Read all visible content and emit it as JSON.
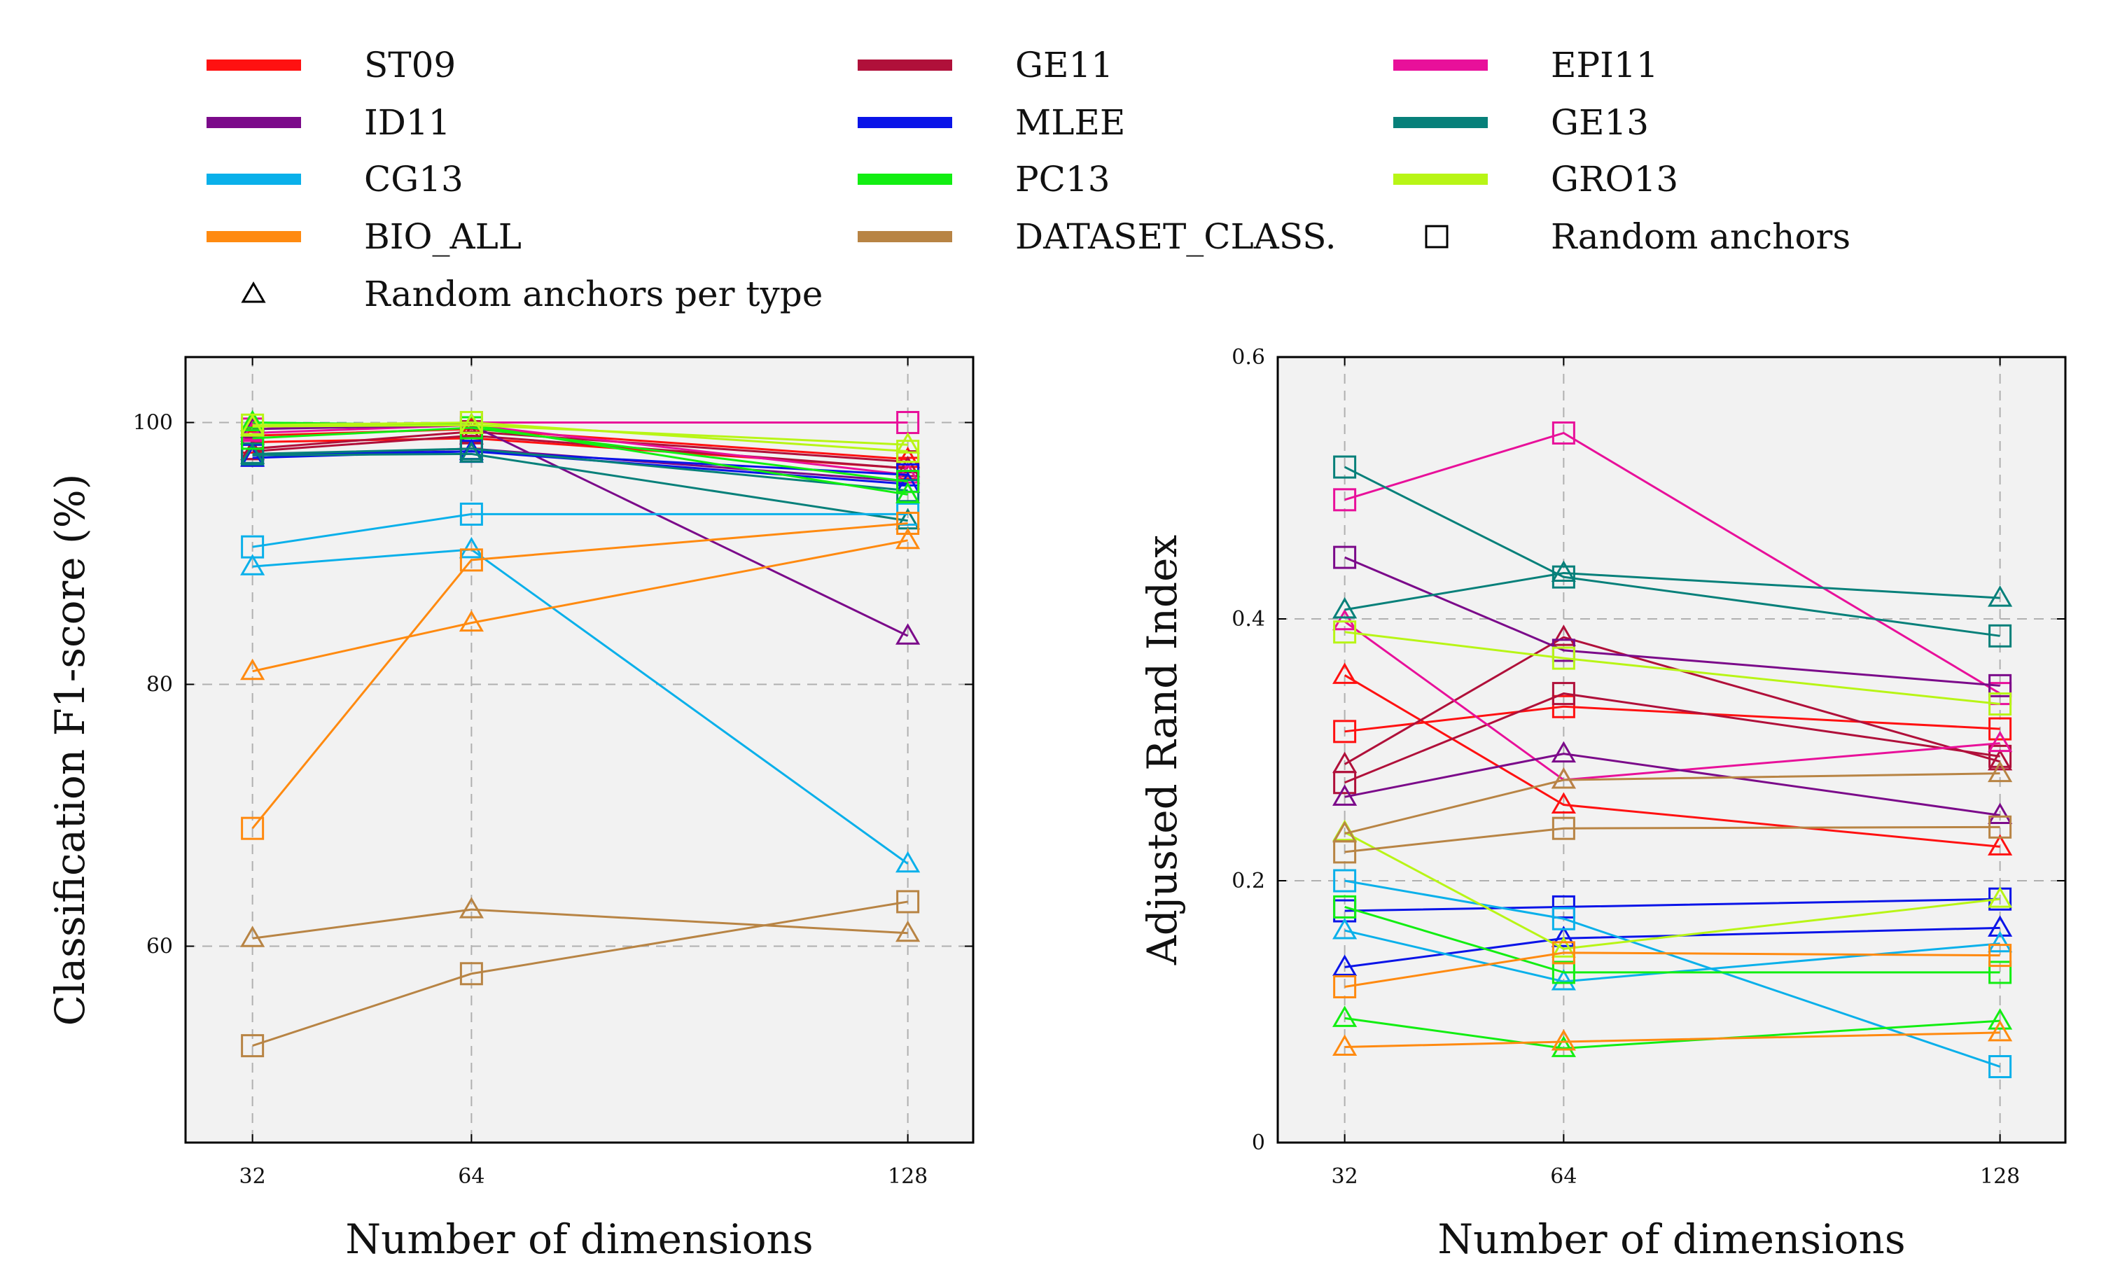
{
  "legend": {
    "entries": [
      {
        "label": "ST09",
        "color": "#ff1111",
        "kind": "line"
      },
      {
        "label": "GE11",
        "color": "#b0103a",
        "kind": "line"
      },
      {
        "label": "EPI11",
        "color": "#e8109a",
        "kind": "line"
      },
      {
        "label": "ID11",
        "color": "#7b0a8a",
        "kind": "line"
      },
      {
        "label": "MLEE",
        "color": "#0a14e8",
        "kind": "line"
      },
      {
        "label": "GE13",
        "color": "#07807a",
        "kind": "line"
      },
      {
        "label": "CG13",
        "color": "#0ab0ea",
        "kind": "line"
      },
      {
        "label": "PC13",
        "color": "#12ee12",
        "kind": "line"
      },
      {
        "label": "GRO13",
        "color": "#b8f516",
        "kind": "line"
      },
      {
        "label": "BIO_ALL",
        "color": "#ff8a10",
        "kind": "line"
      },
      {
        "label": "DATASET_CLASS.",
        "color": "#b88444",
        "kind": "line"
      },
      {
        "label": "Random anchors",
        "color": "#000000",
        "kind": "square"
      },
      {
        "label": "Random anchors per type",
        "color": "#000000",
        "kind": "triangle"
      }
    ]
  },
  "chart_data": [
    {
      "type": "line",
      "xlabel": "Number of dimensions",
      "ylabel": "Classification F1-score (%)",
      "categories": [
        "32",
        "64",
        "128"
      ],
      "ylim": [
        45,
        105
      ],
      "yticks": [
        60,
        80,
        100
      ],
      "grid": true,
      "series": [
        {
          "name": "ST09",
          "color": "#ff1111",
          "marker": "square",
          "values": [
            98.5,
            98.8,
            96.5
          ]
        },
        {
          "name": "ST09",
          "color": "#ff1111",
          "marker": "triangle",
          "values": [
            99.0,
            99.5,
            97.2
          ]
        },
        {
          "name": "GE11",
          "color": "#b0103a",
          "marker": "square",
          "values": [
            98.0,
            99.3,
            97.0
          ]
        },
        {
          "name": "GE11",
          "color": "#b0103a",
          "marker": "triangle",
          "values": [
            97.8,
            99.0,
            96.5
          ]
        },
        {
          "name": "EPI11",
          "color": "#e8109a",
          "marker": "square",
          "values": [
            99.5,
            100.0,
            100.0
          ]
        },
        {
          "name": "EPI11",
          "color": "#e8109a",
          "marker": "triangle",
          "values": [
            99.2,
            99.8,
            96.0
          ]
        },
        {
          "name": "ID11",
          "color": "#7b0a8a",
          "marker": "square",
          "values": [
            97.5,
            98.0,
            95.5
          ]
        },
        {
          "name": "ID11",
          "color": "#7b0a8a",
          "marker": "triangle",
          "values": [
            99.5,
            99.8,
            83.7
          ]
        },
        {
          "name": "MLEE",
          "color": "#0a14e8",
          "marker": "square",
          "values": [
            97.5,
            97.8,
            96.0
          ]
        },
        {
          "name": "MLEE",
          "color": "#0a14e8",
          "marker": "triangle",
          "values": [
            97.3,
            97.8,
            95.3
          ]
        },
        {
          "name": "GE13",
          "color": "#07807a",
          "marker": "square",
          "values": [
            97.6,
            98.0,
            94.8
          ]
        },
        {
          "name": "GE13",
          "color": "#07807a",
          "marker": "triangle",
          "values": [
            97.5,
            97.6,
            92.5
          ]
        },
        {
          "name": "CG13",
          "color": "#0ab0ea",
          "marker": "square",
          "values": [
            90.5,
            93.0,
            93.0
          ]
        },
        {
          "name": "CG13",
          "color": "#0ab0ea",
          "marker": "triangle",
          "values": [
            89.0,
            90.3,
            66.3
          ]
        },
        {
          "name": "PC13",
          "color": "#12ee12",
          "marker": "square",
          "values": [
            98.8,
            99.6,
            95.5
          ]
        },
        {
          "name": "PC13",
          "color": "#12ee12",
          "marker": "triangle",
          "values": [
            100.0,
            99.8,
            94.5
          ]
        },
        {
          "name": "GRO13",
          "color": "#b8f516",
          "marker": "square",
          "values": [
            99.8,
            100.0,
            97.8
          ]
        },
        {
          "name": "GRO13",
          "color": "#b8f516",
          "marker": "triangle",
          "values": [
            99.7,
            99.8,
            98.3
          ]
        },
        {
          "name": "BIO_ALL",
          "color": "#ff8a10",
          "marker": "square",
          "values": [
            69.0,
            89.5,
            92.3
          ]
        },
        {
          "name": "BIO_ALL",
          "color": "#ff8a10",
          "marker": "triangle",
          "values": [
            81.0,
            84.7,
            91.0
          ]
        },
        {
          "name": "DATASET_CLASS.",
          "color": "#b88444",
          "marker": "square",
          "values": [
            52.4,
            57.9,
            63.4
          ]
        },
        {
          "name": "DATASET_CLASS.",
          "color": "#b88444",
          "marker": "triangle",
          "values": [
            60.6,
            62.8,
            61.0
          ]
        }
      ]
    },
    {
      "type": "line",
      "xlabel": "Number of dimensions",
      "ylabel": "Adjusted Rand Index",
      "categories": [
        "32",
        "64",
        "128"
      ],
      "ylim": [
        0,
        0.6
      ],
      "yticks": [
        0,
        0.2,
        0.4,
        0.6
      ],
      "yticklabels": [
        "0",
        "0.2",
        "0.4",
        "0.6"
      ],
      "grid": true,
      "series": [
        {
          "name": "ST09",
          "color": "#ff1111",
          "marker": "square",
          "values": [
            0.314,
            0.333,
            0.316
          ]
        },
        {
          "name": "ST09",
          "color": "#ff1111",
          "marker": "triangle",
          "values": [
            0.357,
            0.258,
            0.226
          ]
        },
        {
          "name": "GE11",
          "color": "#b0103a",
          "marker": "square",
          "values": [
            0.275,
            0.343,
            0.295
          ]
        },
        {
          "name": "GE11",
          "color": "#b0103a",
          "marker": "triangle",
          "values": [
            0.289,
            0.386,
            0.291
          ]
        },
        {
          "name": "EPI11",
          "color": "#e8109a",
          "marker": "square",
          "values": [
            0.491,
            0.542,
            0.343
          ]
        },
        {
          "name": "EPI11",
          "color": "#e8109a",
          "marker": "triangle",
          "values": [
            0.398,
            0.277,
            0.305
          ]
        },
        {
          "name": "ID11",
          "color": "#7b0a8a",
          "marker": "square",
          "values": [
            0.447,
            0.376,
            0.349
          ]
        },
        {
          "name": "ID11",
          "color": "#7b0a8a",
          "marker": "triangle",
          "values": [
            0.264,
            0.297,
            0.25
          ]
        },
        {
          "name": "MLEE",
          "color": "#0a14e8",
          "marker": "square",
          "values": [
            0.177,
            0.18,
            0.186
          ]
        },
        {
          "name": "MLEE",
          "color": "#0a14e8",
          "marker": "triangle",
          "values": [
            0.134,
            0.156,
            0.164
          ]
        },
        {
          "name": "GE13",
          "color": "#07807a",
          "marker": "square",
          "values": [
            0.516,
            0.432,
            0.387
          ]
        },
        {
          "name": "GE13",
          "color": "#07807a",
          "marker": "triangle",
          "values": [
            0.407,
            0.435,
            0.416
          ]
        },
        {
          "name": "CG13",
          "color": "#0ab0ea",
          "marker": "square",
          "values": [
            0.2,
            0.171,
            0.058
          ]
        },
        {
          "name": "CG13",
          "color": "#0ab0ea",
          "marker": "triangle",
          "values": [
            0.162,
            0.123,
            0.152
          ]
        },
        {
          "name": "PC13",
          "color": "#12ee12",
          "marker": "square",
          "values": [
            0.18,
            0.13,
            0.13
          ]
        },
        {
          "name": "PC13",
          "color": "#12ee12",
          "marker": "triangle",
          "values": [
            0.095,
            0.072,
            0.093
          ]
        },
        {
          "name": "GRO13",
          "color": "#b8f516",
          "marker": "square",
          "values": [
            0.39,
            0.37,
            0.335
          ]
        },
        {
          "name": "GRO13",
          "color": "#b8f516",
          "marker": "triangle",
          "values": [
            0.237,
            0.148,
            0.186
          ]
        },
        {
          "name": "BIO_ALL",
          "color": "#ff8a10",
          "marker": "square",
          "values": [
            0.119,
            0.145,
            0.143
          ]
        },
        {
          "name": "BIO_ALL",
          "color": "#ff8a10",
          "marker": "triangle",
          "values": [
            0.073,
            0.077,
            0.084
          ]
        },
        {
          "name": "DATASET_CLASS.",
          "color": "#b88444",
          "marker": "square",
          "values": [
            0.222,
            0.24,
            0.241
          ]
        },
        {
          "name": "DATASET_CLASS.",
          "color": "#b88444",
          "marker": "triangle",
          "values": [
            0.236,
            0.277,
            0.282
          ]
        }
      ]
    }
  ]
}
